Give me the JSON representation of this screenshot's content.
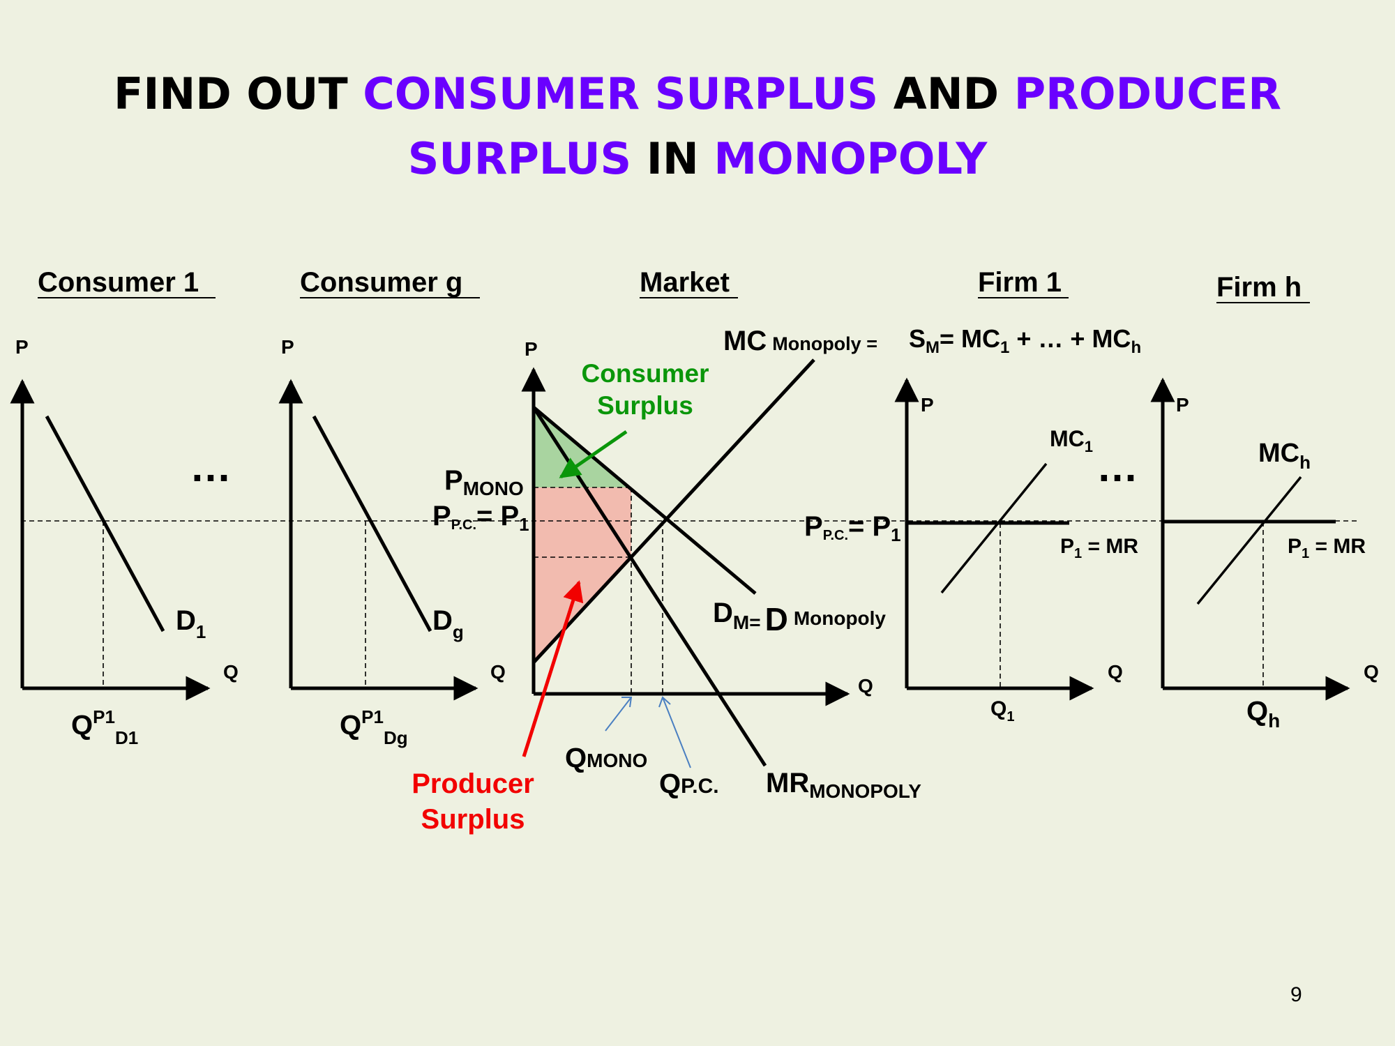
{
  "title": {
    "part1": "FIND OUT ",
    "part2": "CONSUMER SURPLUS",
    "part3": " AND ",
    "part4": "PRODUCER",
    "part5": "SURPLUS",
    "part6": " IN ",
    "part7": "MONOPOLY"
  },
  "colors": {
    "accent": "#6A00FF",
    "consumer_surplus": "#0A960A",
    "producer_surplus": "#F20000",
    "cs_fill": "#A9D4A0",
    "ps_fill": "#F2BBAF",
    "qarrow": "#4A7FC1"
  },
  "panels": {
    "consumer1": {
      "heading": "Consumer 1",
      "p": "P",
      "q": "Q",
      "demand": "D",
      "demand_sub": "1",
      "qlabel": "Q",
      "qlabel_sup": "P1",
      "qlabel_sub": "D1"
    },
    "consumer_g": {
      "heading": "Consumer g",
      "p": "P",
      "q": "Q",
      "demand": "D",
      "demand_sub": "g",
      "qlabel": "Q",
      "qlabel_sup": "P1",
      "qlabel_sub": "Dg"
    },
    "ellipsis": "…",
    "market": {
      "heading": "Market",
      "p": "P",
      "q": "Q",
      "mc": "MC",
      "mc_monopoly": "Monopoly =",
      "sm_s": "S",
      "sm_m": "M",
      "sm_eq": "= MC",
      "sm_1": "1",
      "sm_mid": " + … + MC",
      "sm_h": "h",
      "cs_label1": "Consumer",
      "cs_label2": "Surplus",
      "ps_label1": "Producer",
      "ps_label2": "Surplus",
      "pmono": "P",
      "pmono_sub": "MONO",
      "ppc": "P",
      "ppc_sub": "P.C.",
      "ppc_eq": "= P",
      "ppc_1": "1",
      "dm": "D",
      "dm_sub": "M=",
      "d_big": "D",
      "d_monopoly": "Monopoly",
      "qmono": "Q",
      "qmono_sub": "MONO",
      "qpc": "Q",
      "qpc_sub": "P.C.",
      "mr": "MR",
      "mr_sub": "MONOPOLY"
    },
    "firm1": {
      "heading": "Firm 1",
      "p": "P",
      "q": "Q",
      "mc": "MC",
      "mc_sub": "1",
      "q1": "Q",
      "q1_sub": "1",
      "p1mr": "P",
      "p1mr_sub": "1",
      "p1mr_rest": " = MR",
      "ppc": "P",
      "ppc_sub": "P.C.",
      "ppc_eq": "= P",
      "ppc_1": "1"
    },
    "firm_h": {
      "heading": "Firm h",
      "p": "P",
      "q": "Q",
      "mc": "MC",
      "mc_sub": "h",
      "qh": "Q",
      "qh_sub": "h",
      "p1mr": "P",
      "p1mr_sub": "1",
      "p1mr_rest": " = MR"
    }
  },
  "page_number": "9"
}
